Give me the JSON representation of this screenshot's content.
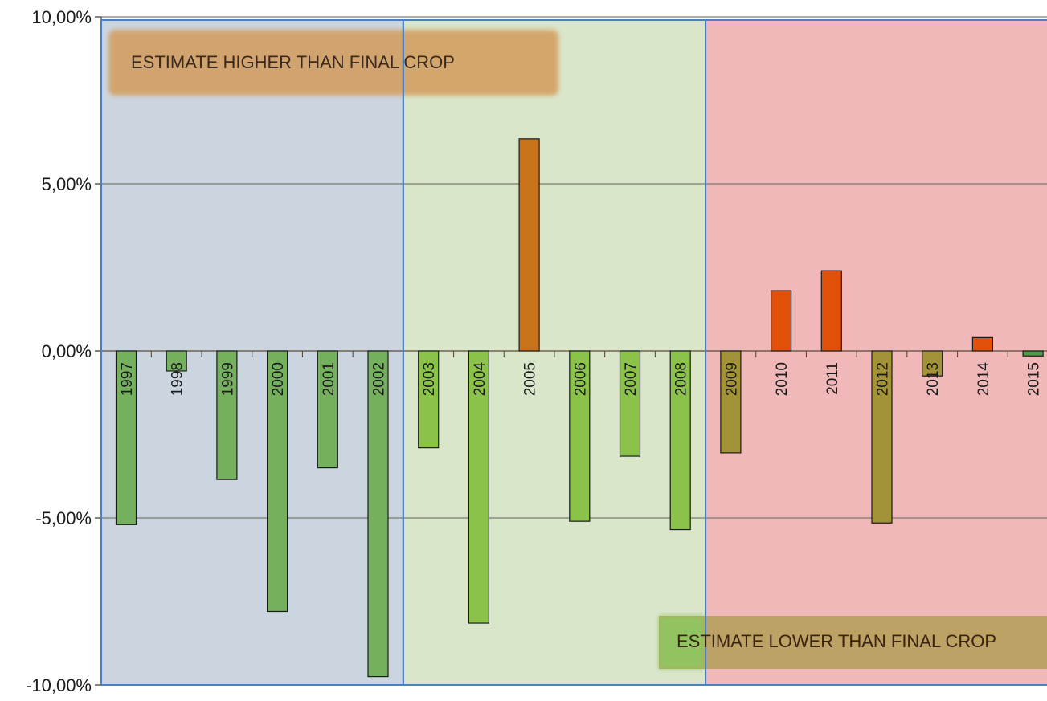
{
  "chart_data": {
    "type": "bar",
    "title": "",
    "xlabel": "",
    "ylabel": "",
    "ylim": [
      -10,
      10
    ],
    "yticks": [
      {
        "value": 10,
        "label": "10,00%"
      },
      {
        "value": 5,
        "label": "5,00%"
      },
      {
        "value": 0,
        "label": "0,00%"
      },
      {
        "value": -5,
        "label": "-5,00%"
      },
      {
        "value": -10,
        "label": "-10,00%"
      }
    ],
    "grid": true,
    "categories": [
      "1997",
      "1998",
      "1999",
      "2000",
      "2001",
      "2002",
      "2003",
      "2004",
      "2005",
      "2006",
      "2007",
      "2008",
      "2009",
      "2010",
      "2011",
      "2012",
      "2013",
      "2014",
      "2015"
    ],
    "values": [
      -5.2,
      -0.6,
      -3.85,
      -7.8,
      -3.5,
      -9.75,
      -2.9,
      -8.15,
      6.35,
      -5.1,
      -3.15,
      -5.35,
      -3.05,
      1.8,
      2.4,
      -5.15,
      -0.75,
      0.4,
      -0.15
    ],
    "bar_colors": [
      "#75b05f",
      "#75b05f",
      "#75b05f",
      "#75b05f",
      "#75b05f",
      "#75b05f",
      "#8bc34a",
      "#8bc34a",
      "#c8731b",
      "#8bc34a",
      "#8bc34a",
      "#8bc34a",
      "#a39338",
      "#e2500a",
      "#e2500a",
      "#a39338",
      "#a39338",
      "#e2500a",
      "#4f9a48"
    ],
    "regions": [
      {
        "from": "1997",
        "to": "2002",
        "color": "#cbd5e0"
      },
      {
        "from": "2003",
        "to": "2008",
        "color": "#d9e6ca"
      },
      {
        "from": "2009",
        "to": "2015",
        "color": "#f0b8b8"
      }
    ],
    "annotations": [
      {
        "text": "ESTIMATE HIGHER THAN FINAL CROP",
        "color": "#d39c5c",
        "text_color": "#3a2a20"
      },
      {
        "text": "ESTIMATE LOWER THAN FINAL CROP",
        "color": "#b8a060",
        "text_color": "#3a2410"
      }
    ]
  }
}
